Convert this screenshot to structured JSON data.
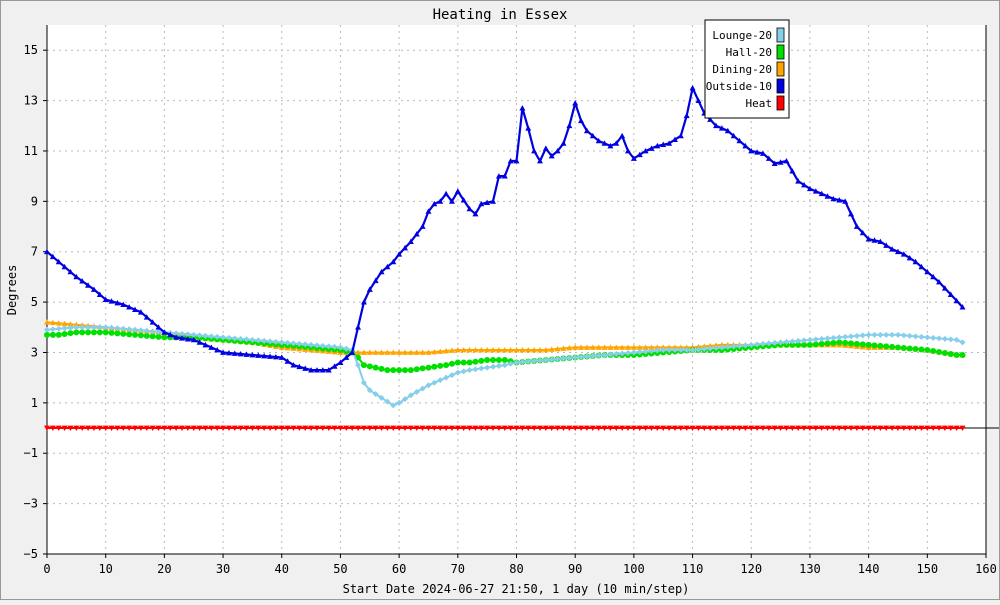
{
  "chart_data": {
    "type": "line",
    "title": "Heating in Essex",
    "xlabel": "Start Date 2024-06-27 21:50, 1 day (10 min/step)",
    "ylabel": "Degrees",
    "xlim": [
      0,
      160
    ],
    "ylim": [
      -5,
      16
    ],
    "x_ticks": [
      0,
      10,
      20,
      30,
      40,
      50,
      60,
      70,
      80,
      90,
      100,
      110,
      120,
      130,
      140,
      150,
      160
    ],
    "y_ticks": [
      -5,
      -3,
      -1,
      1,
      3,
      5,
      7,
      9,
      11,
      13,
      15
    ],
    "grid": true,
    "legend_position": "top-right",
    "series": [
      {
        "name": "Lounge-20",
        "color": "#87ceeb",
        "marker": "diamond",
        "x": [
          0,
          5,
          10,
          15,
          20,
          25,
          30,
          35,
          40,
          45,
          50,
          52,
          53,
          54,
          55,
          57,
          59,
          60,
          62,
          65,
          68,
          70,
          72,
          75,
          78,
          80,
          85,
          90,
          95,
          100,
          105,
          110,
          115,
          120,
          125,
          130,
          135,
          140,
          145,
          150,
          155,
          156
        ],
        "y": [
          3.9,
          4.0,
          4.0,
          3.9,
          3.8,
          3.7,
          3.6,
          3.5,
          3.4,
          3.3,
          3.2,
          3.1,
          2.5,
          1.8,
          1.5,
          1.2,
          0.9,
          1.0,
          1.3,
          1.7,
          2.0,
          2.2,
          2.3,
          2.4,
          2.5,
          2.6,
          2.7,
          2.8,
          2.9,
          3.0,
          3.1,
          3.1,
          3.2,
          3.3,
          3.4,
          3.5,
          3.6,
          3.7,
          3.7,
          3.6,
          3.5,
          3.4
        ]
      },
      {
        "name": "Hall-20",
        "color": "#00e000",
        "marker": "circle",
        "x": [
          0,
          2,
          5,
          8,
          10,
          15,
          20,
          25,
          30,
          35,
          40,
          45,
          50,
          52,
          53,
          54,
          56,
          58,
          60,
          62,
          65,
          68,
          70,
          72,
          75,
          78,
          80,
          85,
          90,
          95,
          100,
          105,
          110,
          115,
          120,
          125,
          130,
          135,
          140,
          145,
          150,
          155,
          156
        ],
        "y": [
          3.7,
          3.7,
          3.8,
          3.8,
          3.8,
          3.7,
          3.6,
          3.6,
          3.5,
          3.4,
          3.3,
          3.2,
          3.1,
          3.0,
          2.8,
          2.5,
          2.4,
          2.3,
          2.3,
          2.3,
          2.4,
          2.5,
          2.6,
          2.6,
          2.7,
          2.7,
          2.6,
          2.7,
          2.8,
          2.9,
          2.9,
          3.0,
          3.1,
          3.1,
          3.2,
          3.3,
          3.3,
          3.4,
          3.3,
          3.2,
          3.1,
          2.9,
          2.9
        ]
      },
      {
        "name": "Dining-20",
        "color": "#ffa500",
        "marker": "triangle",
        "x": [
          0,
          5,
          10,
          15,
          20,
          25,
          30,
          35,
          40,
          45,
          50,
          52,
          55,
          60,
          65,
          70,
          75,
          80,
          85,
          90,
          95,
          100,
          105,
          110,
          115,
          120,
          125,
          130,
          135,
          140,
          145,
          150,
          155,
          156
        ],
        "y": [
          4.2,
          4.1,
          4.0,
          3.9,
          3.8,
          3.6,
          3.5,
          3.4,
          3.2,
          3.1,
          3.0,
          3.0,
          3.0,
          3.0,
          3.0,
          3.1,
          3.1,
          3.1,
          3.1,
          3.2,
          3.2,
          3.2,
          3.2,
          3.2,
          3.3,
          3.3,
          3.3,
          3.3,
          3.3,
          3.2,
          3.2,
          3.1,
          2.9,
          2.9
        ]
      },
      {
        "name": "Outside-10",
        "color": "#0000e0",
        "marker": "triangle",
        "x": [
          0,
          2,
          5,
          8,
          10,
          13,
          16,
          18,
          20,
          22,
          25,
          28,
          30,
          35,
          40,
          42,
          45,
          48,
          50,
          52,
          53,
          54,
          55,
          57,
          59,
          60,
          62,
          64,
          65,
          66,
          67,
          68,
          69,
          70,
          72,
          73,
          74,
          76,
          77,
          78,
          79,
          80,
          81,
          82,
          83,
          84,
          85,
          86,
          87,
          88,
          89,
          90,
          91,
          92,
          93,
          94,
          95,
          96,
          97,
          98,
          99,
          100,
          102,
          104,
          106,
          108,
          109,
          110,
          112,
          114,
          116,
          118,
          120,
          122,
          124,
          126,
          128,
          130,
          132,
          134,
          136,
          138,
          140,
          142,
          144,
          146,
          148,
          150,
          152,
          154,
          156
        ],
        "y": [
          7.0,
          6.6,
          6.0,
          5.5,
          5.1,
          4.9,
          4.6,
          4.2,
          3.8,
          3.6,
          3.5,
          3.2,
          3.0,
          2.9,
          2.8,
          2.5,
          2.3,
          2.3,
          2.6,
          3.0,
          4.0,
          5.0,
          5.5,
          6.2,
          6.6,
          6.9,
          7.4,
          8.0,
          8.6,
          8.9,
          9.0,
          9.3,
          9.0,
          9.4,
          8.7,
          8.5,
          8.9,
          9.0,
          10.0,
          10.0,
          10.6,
          10.6,
          12.7,
          11.9,
          11.0,
          10.6,
          11.1,
          10.8,
          11.0,
          11.3,
          12.0,
          12.9,
          12.2,
          11.8,
          11.6,
          11.4,
          11.3,
          11.2,
          11.3,
          11.6,
          11.0,
          10.7,
          11.0,
          11.2,
          11.3,
          11.6,
          12.4,
          13.5,
          12.5,
          12.0,
          11.8,
          11.4,
          11.0,
          10.9,
          10.5,
          10.6,
          9.8,
          9.5,
          9.3,
          9.1,
          9.0,
          8.0,
          7.5,
          7.4,
          7.1,
          6.9,
          6.6,
          6.2,
          5.8,
          5.3,
          4.8
        ]
      },
      {
        "name": "Heat",
        "color": "#ff0000",
        "marker": "triangle-down",
        "x": [
          0,
          156
        ],
        "y": [
          0.0,
          0.0
        ]
      }
    ]
  }
}
